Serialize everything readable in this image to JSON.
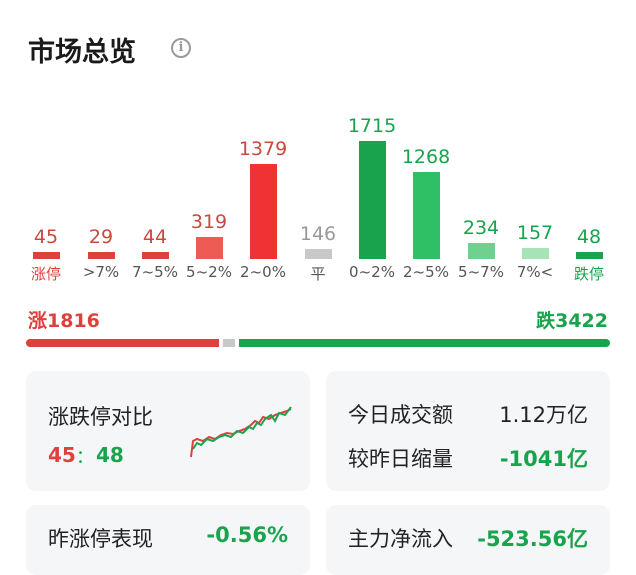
{
  "header": {
    "title": "市场总览",
    "info_icon": "info-icon"
  },
  "chart_data": {
    "type": "bar",
    "categories": [
      "涨停",
      ">7%",
      "7~5%",
      "5~2%",
      "2~0%",
      "平",
      "0~2%",
      "2~5%",
      "5~7%",
      "7%<",
      "跌停"
    ],
    "values": [
      45,
      29,
      44,
      319,
      1379,
      146,
      1715,
      1268,
      234,
      157,
      48
    ],
    "colors": [
      "#e0403c",
      "#e0403c",
      "#e0403c",
      "#f05a55",
      "#ef3333",
      "#c8c8c8",
      "#19a34c",
      "#2fbf65",
      "#6fd08f",
      "#a6e3b7",
      "#19a34c"
    ],
    "label_colors": [
      "#c8493e",
      "#c8493e",
      "#c8493e",
      "#c8493e",
      "#c8493e",
      "#999999",
      "#19a34c",
      "#19a34c",
      "#19a34c",
      "#19a34c",
      "#19a34c"
    ],
    "category_colors": [
      "#e0403c",
      "#555555",
      "#555555",
      "#555555",
      "#555555",
      "#555555",
      "#555555",
      "#555555",
      "#555555",
      "#555555",
      "#19a34c"
    ]
  },
  "summary": {
    "up_label": "涨1816",
    "down_label": "跌3422",
    "up_count": 1816,
    "flat_count": 146,
    "down_count": 3422
  },
  "cards": {
    "limit": {
      "title": "涨跌停对比",
      "up": "45",
      "sep": "：",
      "down": "48"
    },
    "turnover": {
      "label": "今日成交额",
      "value": "1.12万亿",
      "change_label": "较昨日缩量",
      "change_value": "-1041亿"
    },
    "yesterday": {
      "label": "昨涨停表现",
      "value": "-0.56%"
    },
    "mainflow": {
      "label": "主力净流入",
      "value": "-523.56亿"
    }
  },
  "colors": {
    "up": "#e0403c",
    "down": "#19a34c",
    "flat": "#c8c8c8",
    "card_bg": "#f5f6f8"
  }
}
